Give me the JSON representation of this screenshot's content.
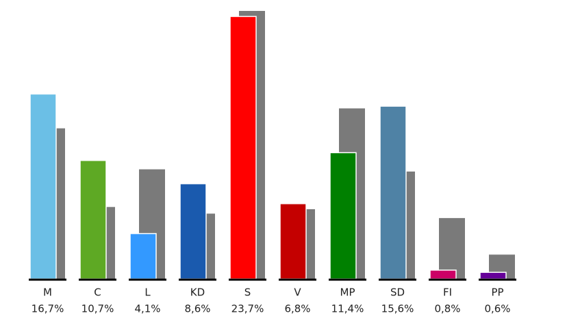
{
  "chart_data": {
    "type": "bar",
    "categories": [
      "M",
      "C",
      "L",
      "KD",
      "S",
      "V",
      "MP",
      "SD",
      "FI",
      "PP"
    ],
    "series": [
      {
        "values": [
          16.7,
          10.7,
          4.1,
          8.6,
          23.7,
          6.8,
          11.4,
          15.6,
          0.8,
          0.6
        ],
        "value_labels": [
          "16,7%",
          "10,7%",
          "4,1%",
          "8,6%",
          "23,7%",
          "6,8%",
          "11,4%",
          "15,6%",
          "0,8%",
          "0,6%"
        ],
        "colors": [
          "#6bbfe6",
          "#5ea924",
          "#3399ff",
          "#1a5aae",
          "#ff0000",
          "#c40000",
          "#008000",
          "#4f82a5",
          "#cc0066",
          "#660099"
        ]
      },
      {
        "values": [
          13.6,
          6.5,
          9.9,
          5.9,
          24.2,
          6.3,
          15.4,
          9.7,
          5.5,
          2.2
        ],
        "color": "#7a7a7a"
      }
    ],
    "ylim": [
      0,
      25
    ]
  }
}
